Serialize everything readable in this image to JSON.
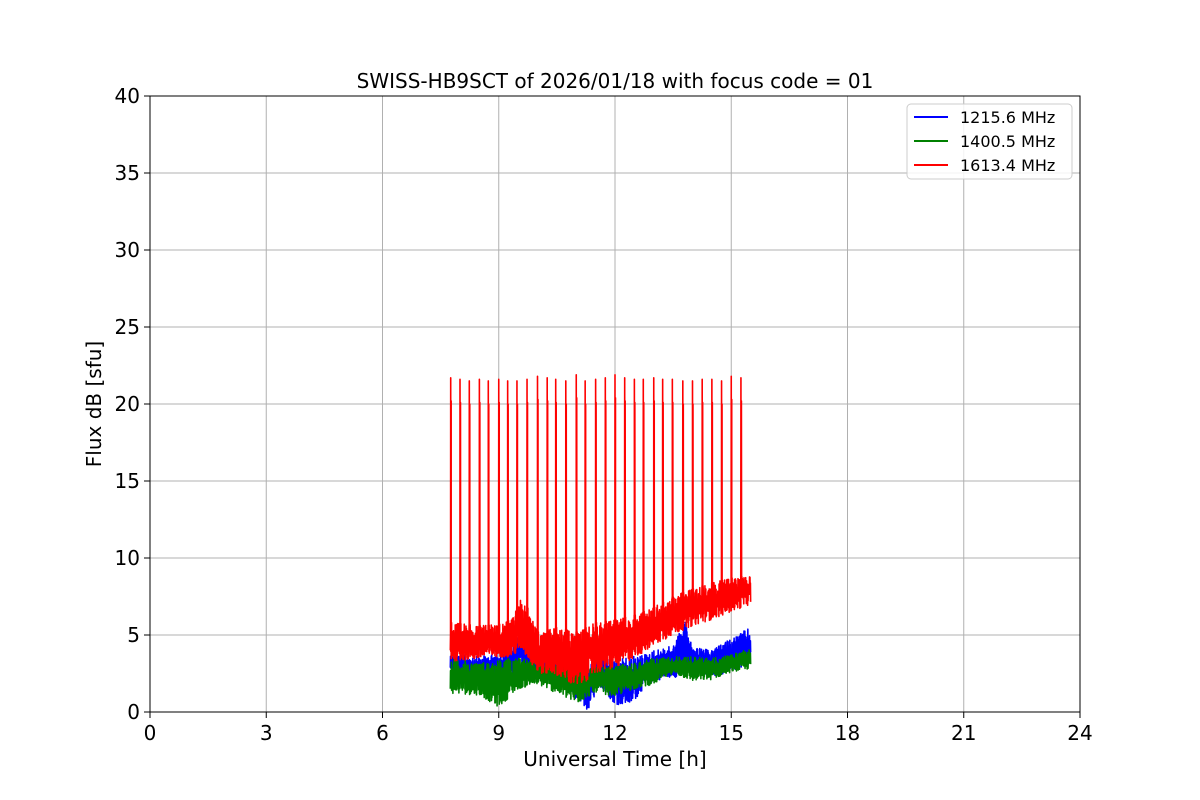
{
  "chart_data": {
    "type": "line",
    "title": "SWISS-HB9SCT of 2026/01/18 with focus code = 01",
    "xlabel": "Universal Time [h]",
    "ylabel": "Flux dB [sfu]",
    "xlim": [
      0,
      24
    ],
    "ylim": [
      0,
      40
    ],
    "xticks": [
      0,
      3,
      6,
      9,
      12,
      15,
      18,
      21,
      24
    ],
    "yticks": [
      0,
      5,
      10,
      15,
      20,
      25,
      30,
      35,
      40
    ],
    "xtick_labels": [
      "0",
      "3",
      "6",
      "9",
      "12",
      "15",
      "18",
      "21",
      "24"
    ],
    "ytick_labels": [
      "0",
      "5",
      "10",
      "15",
      "20",
      "25",
      "30",
      "35",
      "40"
    ],
    "grid": true,
    "legend_position": "top-right",
    "time_range": [
      7.75,
      15.5
    ],
    "series": [
      {
        "name": "1215.6 MHz",
        "color": "#0000ff",
        "envelope_x": [
          7.75,
          8.5,
          9.25,
          9.6,
          10.0,
          10.5,
          11.0,
          11.3,
          11.6,
          12.0,
          12.4,
          12.7,
          13.0,
          13.5,
          13.8,
          14.0,
          14.5,
          15.0,
          15.5
        ],
        "envelope_low": [
          2.5,
          2.0,
          2.3,
          3.0,
          1.9,
          2.0,
          0.8,
          0.0,
          1.7,
          0.5,
          0.4,
          1.4,
          2.0,
          2.3,
          2.1,
          2.6,
          2.3,
          2.6,
          3.0
        ],
        "envelope_high": [
          3.8,
          3.6,
          3.9,
          5.2,
          4.0,
          4.0,
          3.1,
          3.0,
          3.8,
          3.4,
          3.6,
          3.7,
          4.0,
          4.3,
          6.0,
          4.2,
          4.0,
          4.8,
          5.5
        ]
      },
      {
        "name": "1400.5 MHz",
        "color": "#008000",
        "envelope_x": [
          7.75,
          8.5,
          9.0,
          9.5,
          10.0,
          10.5,
          11.0,
          11.5,
          12.0,
          12.5,
          13.0,
          13.5,
          14.0,
          14.5,
          15.0,
          15.5
        ],
        "envelope_low": [
          1.2,
          1.1,
          0.3,
          1.5,
          1.8,
          1.2,
          0.5,
          1.3,
          1.0,
          1.5,
          1.8,
          2.5,
          2.0,
          2.1,
          2.6,
          2.8
        ],
        "envelope_high": [
          3.5,
          3.2,
          3.4,
          3.6,
          3.2,
          3.4,
          3.0,
          2.9,
          3.0,
          3.2,
          3.5,
          3.6,
          3.6,
          3.5,
          3.7,
          4.2
        ]
      },
      {
        "name": "1613.4 MHz",
        "color": "#ff0000",
        "envelope_x": [
          7.75,
          8.5,
          9.0,
          9.3,
          9.6,
          10.0,
          10.5,
          11.0,
          11.5,
          12.0,
          12.5,
          13.0,
          13.5,
          14.0,
          14.5,
          15.0,
          15.5
        ],
        "envelope_low": [
          3.3,
          3.4,
          3.6,
          3.5,
          4.0,
          2.5,
          2.4,
          1.5,
          2.5,
          2.8,
          3.5,
          4.3,
          5.0,
          5.6,
          6.0,
          6.5,
          7.0
        ],
        "envelope_high": [
          5.8,
          5.6,
          5.7,
          6.0,
          7.5,
          5.2,
          5.5,
          5.2,
          5.8,
          6.0,
          6.3,
          6.8,
          7.5,
          8.0,
          8.4,
          8.7,
          8.9
        ],
        "spike_times": [
          7.76,
          8.0,
          8.24,
          8.5,
          8.73,
          9.0,
          9.23,
          9.47,
          9.73,
          10.0,
          10.25,
          10.47,
          10.73,
          11.0,
          11.23,
          11.5,
          11.75,
          12.0,
          12.25,
          12.5,
          12.73,
          13.0,
          13.23,
          13.48,
          13.75,
          14.0,
          14.25,
          14.5,
          14.75,
          15.0,
          15.25
        ],
        "spike_peaks": [
          21.7,
          21.6,
          21.5,
          21.6,
          21.5,
          21.6,
          21.5,
          21.5,
          21.6,
          21.8,
          21.7,
          21.6,
          21.5,
          21.9,
          21.5,
          21.6,
          21.7,
          21.9,
          21.7,
          21.6,
          21.6,
          21.7,
          21.6,
          21.6,
          21.5,
          21.5,
          21.6,
          21.6,
          21.5,
          21.8,
          21.7
        ]
      }
    ]
  }
}
